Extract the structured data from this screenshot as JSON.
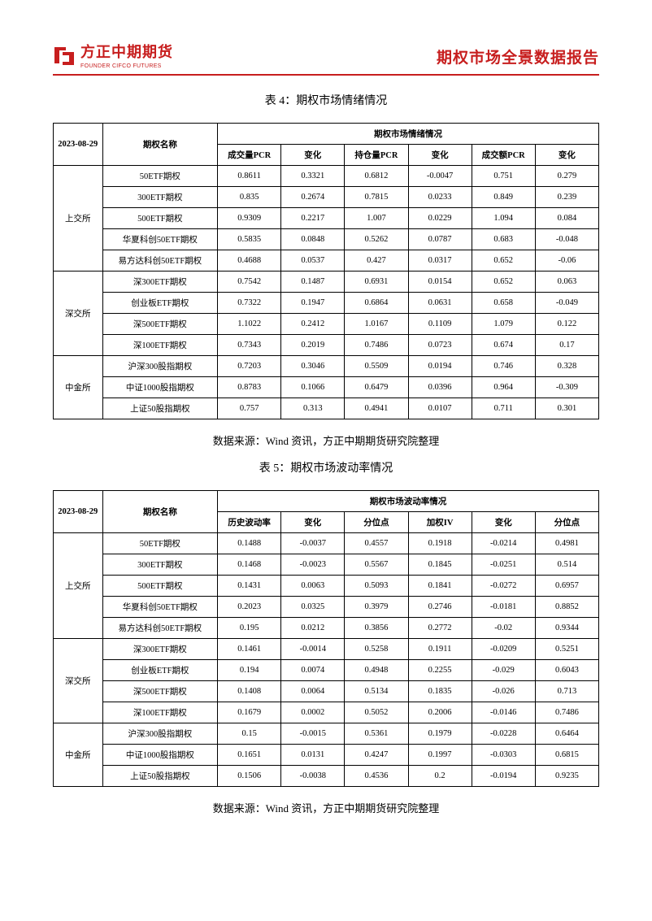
{
  "header": {
    "logo_cn": "方正中期期货",
    "logo_en": "FOUNDER CIFCO FUTURES",
    "report_title": "期权市场全景数据报告",
    "logo_color": "#c71e1e"
  },
  "table4": {
    "title": "表 4：期权市场情绪情况",
    "date_header": "2023-08-29",
    "name_header": "期权名称",
    "group_header": "期权市场情绪情况",
    "cols": [
      "成交量PCR",
      "变化",
      "持仓量PCR",
      "变化",
      "成交额PCR",
      "变化"
    ],
    "groups": [
      {
        "exchange": "上交所",
        "rows": [
          {
            "name": "50ETF期权",
            "v": [
              "0.8611",
              "0.3321",
              "0.6812",
              "-0.0047",
              "0.751",
              "0.279"
            ]
          },
          {
            "name": "300ETF期权",
            "v": [
              "0.835",
              "0.2674",
              "0.7815",
              "0.0233",
              "0.849",
              "0.239"
            ]
          },
          {
            "name": "500ETF期权",
            "v": [
              "0.9309",
              "0.2217",
              "1.007",
              "0.0229",
              "1.094",
              "0.084"
            ]
          },
          {
            "name": "华夏科创50ETF期权",
            "v": [
              "0.5835",
              "0.0848",
              "0.5262",
              "0.0787",
              "0.683",
              "-0.048"
            ]
          },
          {
            "name": "易方达科创50ETF期权",
            "v": [
              "0.4688",
              "0.0537",
              "0.427",
              "0.0317",
              "0.652",
              "-0.06"
            ]
          }
        ]
      },
      {
        "exchange": "深交所",
        "rows": [
          {
            "name": "深300ETF期权",
            "v": [
              "0.7542",
              "0.1487",
              "0.6931",
              "0.0154",
              "0.652",
              "0.063"
            ]
          },
          {
            "name": "创业板ETF期权",
            "v": [
              "0.7322",
              "0.1947",
              "0.6864",
              "0.0631",
              "0.658",
              "-0.049"
            ]
          },
          {
            "name": "深500ETF期权",
            "v": [
              "1.1022",
              "0.2412",
              "1.0167",
              "0.1109",
              "1.079",
              "0.122"
            ]
          },
          {
            "name": "深100ETF期权",
            "v": [
              "0.7343",
              "0.2019",
              "0.7486",
              "0.0723",
              "0.674",
              "0.17"
            ]
          }
        ]
      },
      {
        "exchange": "中金所",
        "rows": [
          {
            "name": "沪深300股指期权",
            "v": [
              "0.7203",
              "0.3046",
              "0.5509",
              "0.0194",
              "0.746",
              "0.328"
            ]
          },
          {
            "name": "中证1000股指期权",
            "v": [
              "0.8783",
              "0.1066",
              "0.6479",
              "0.0396",
              "0.964",
              "-0.309"
            ]
          },
          {
            "name": "上证50股指期权",
            "v": [
              "0.757",
              "0.313",
              "0.4941",
              "0.0107",
              "0.711",
              "0.301"
            ]
          }
        ]
      }
    ],
    "source": "数据来源：Wind 资讯，方正中期期货研究院整理"
  },
  "table5": {
    "title": "表 5：期权市场波动率情况",
    "date_header": "2023-08-29",
    "name_header": "期权名称",
    "group_header": "期权市场波动率情况",
    "cols": [
      "历史波动率",
      "变化",
      "分位点",
      "加权IV",
      "变化",
      "分位点"
    ],
    "groups": [
      {
        "exchange": "上交所",
        "rows": [
          {
            "name": "50ETF期权",
            "v": [
              "0.1488",
              "-0.0037",
              "0.4557",
              "0.1918",
              "-0.0214",
              "0.4981"
            ]
          },
          {
            "name": "300ETF期权",
            "v": [
              "0.1468",
              "-0.0023",
              "0.5567",
              "0.1845",
              "-0.0251",
              "0.514"
            ]
          },
          {
            "name": "500ETF期权",
            "v": [
              "0.1431",
              "0.0063",
              "0.5093",
              "0.1841",
              "-0.0272",
              "0.6957"
            ]
          },
          {
            "name": "华夏科创50ETF期权",
            "v": [
              "0.2023",
              "0.0325",
              "0.3979",
              "0.2746",
              "-0.0181",
              "0.8852"
            ]
          },
          {
            "name": "易方达科创50ETF期权",
            "v": [
              "0.195",
              "0.0212",
              "0.3856",
              "0.2772",
              "-0.02",
              "0.9344"
            ]
          }
        ]
      },
      {
        "exchange": "深交所",
        "rows": [
          {
            "name": "深300ETF期权",
            "v": [
              "0.1461",
              "-0.0014",
              "0.5258",
              "0.1911",
              "-0.0209",
              "0.5251"
            ]
          },
          {
            "name": "创业板ETF期权",
            "v": [
              "0.194",
              "0.0074",
              "0.4948",
              "0.2255",
              "-0.029",
              "0.6043"
            ]
          },
          {
            "name": "深500ETF期权",
            "v": [
              "0.1408",
              "0.0064",
              "0.5134",
              "0.1835",
              "-0.026",
              "0.713"
            ]
          },
          {
            "name": "深100ETF期权",
            "v": [
              "0.1679",
              "0.0002",
              "0.5052",
              "0.2006",
              "-0.0146",
              "0.7486"
            ]
          }
        ]
      },
      {
        "exchange": "中金所",
        "rows": [
          {
            "name": "沪深300股指期权",
            "v": [
              "0.15",
              "-0.0015",
              "0.5361",
              "0.1979",
              "-0.0228",
              "0.6464"
            ]
          },
          {
            "name": "中证1000股指期权",
            "v": [
              "0.1651",
              "0.0131",
              "0.4247",
              "0.1997",
              "-0.0303",
              "0.6815"
            ]
          },
          {
            "name": "上证50股指期权",
            "v": [
              "0.1506",
              "-0.0038",
              "0.4536",
              "0.2",
              "-0.0194",
              "0.9235"
            ]
          }
        ]
      }
    ],
    "source": "数据来源：Wind 资讯，方正中期期货研究院整理"
  }
}
